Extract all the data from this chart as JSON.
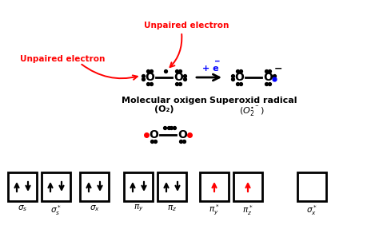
{
  "bg_color": "#ffffff",
  "unpaired_top_text": "Unpaired electron",
  "unpaired_left_text": "Unpaired electron",
  "mol_oxygen_label": "Molecular oxigen",
  "mol_oxygen_formula": "(O₂)",
  "superoxid_label": "Superoxid radical",
  "plus_e_text": "+ e",
  "box_labels": [
    "$\\sigma_s$",
    "$\\sigma_s^*$",
    "$\\sigma_x$",
    "$\\pi_y$",
    "$\\pi_z$",
    "$\\pi_y^*$",
    "$\\pi_z^*$",
    "$\\sigma_x^*$"
  ],
  "box_arrows": [
    [
      [
        true,
        "black"
      ],
      [
        false,
        "black"
      ]
    ],
    [
      [
        true,
        "black"
      ],
      [
        false,
        "black"
      ]
    ],
    [
      [
        true,
        "black"
      ],
      [
        false,
        "black"
      ]
    ],
    [
      [
        true,
        "black"
      ],
      [
        false,
        "black"
      ]
    ],
    [
      [
        true,
        "black"
      ],
      [
        false,
        "black"
      ]
    ],
    [
      [
        true,
        "red"
      ]
    ],
    [
      [
        true,
        "red"
      ]
    ],
    []
  ]
}
